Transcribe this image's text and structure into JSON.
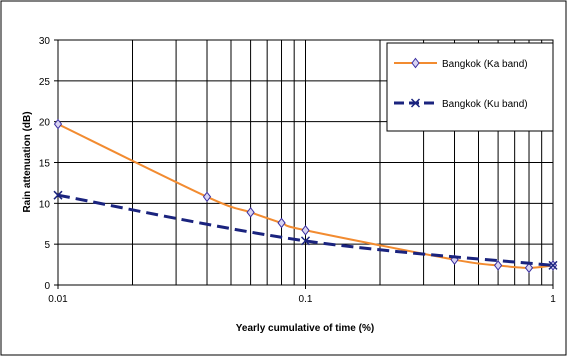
{
  "chart_data": {
    "type": "line",
    "xlabel": "Yearly cumulative of time (%)",
    "ylabel": "Rain attenuation (dB)",
    "xscale": "log",
    "xlim": [
      0.01,
      1
    ],
    "ylim": [
      0,
      30
    ],
    "yticks": [
      0,
      5,
      10,
      15,
      20,
      25,
      30
    ],
    "xticks": [
      0.01,
      0.1,
      1
    ],
    "xtick_labels": [
      "0.01",
      "0.1",
      "1"
    ],
    "grid": true,
    "legend_position": "top-right",
    "series": [
      {
        "name": "Bangkok (Ka band)",
        "color": "#F28B30",
        "marker": "diamond",
        "line_style": "solid",
        "x": [
          0.01,
          0.04,
          0.06,
          0.08,
          0.1,
          0.4,
          0.6,
          0.8,
          1
        ],
        "y": [
          19.7,
          10.8,
          8.9,
          7.6,
          6.7,
          3.1,
          2.4,
          2.1,
          2.4
        ]
      },
      {
        "name": "Bangkok (Ku band)",
        "color": "#1A237E",
        "marker": "x",
        "line_style": "dashed",
        "x": [
          0.01,
          0.1,
          1
        ],
        "y": [
          11.0,
          5.4,
          2.4
        ]
      }
    ]
  }
}
